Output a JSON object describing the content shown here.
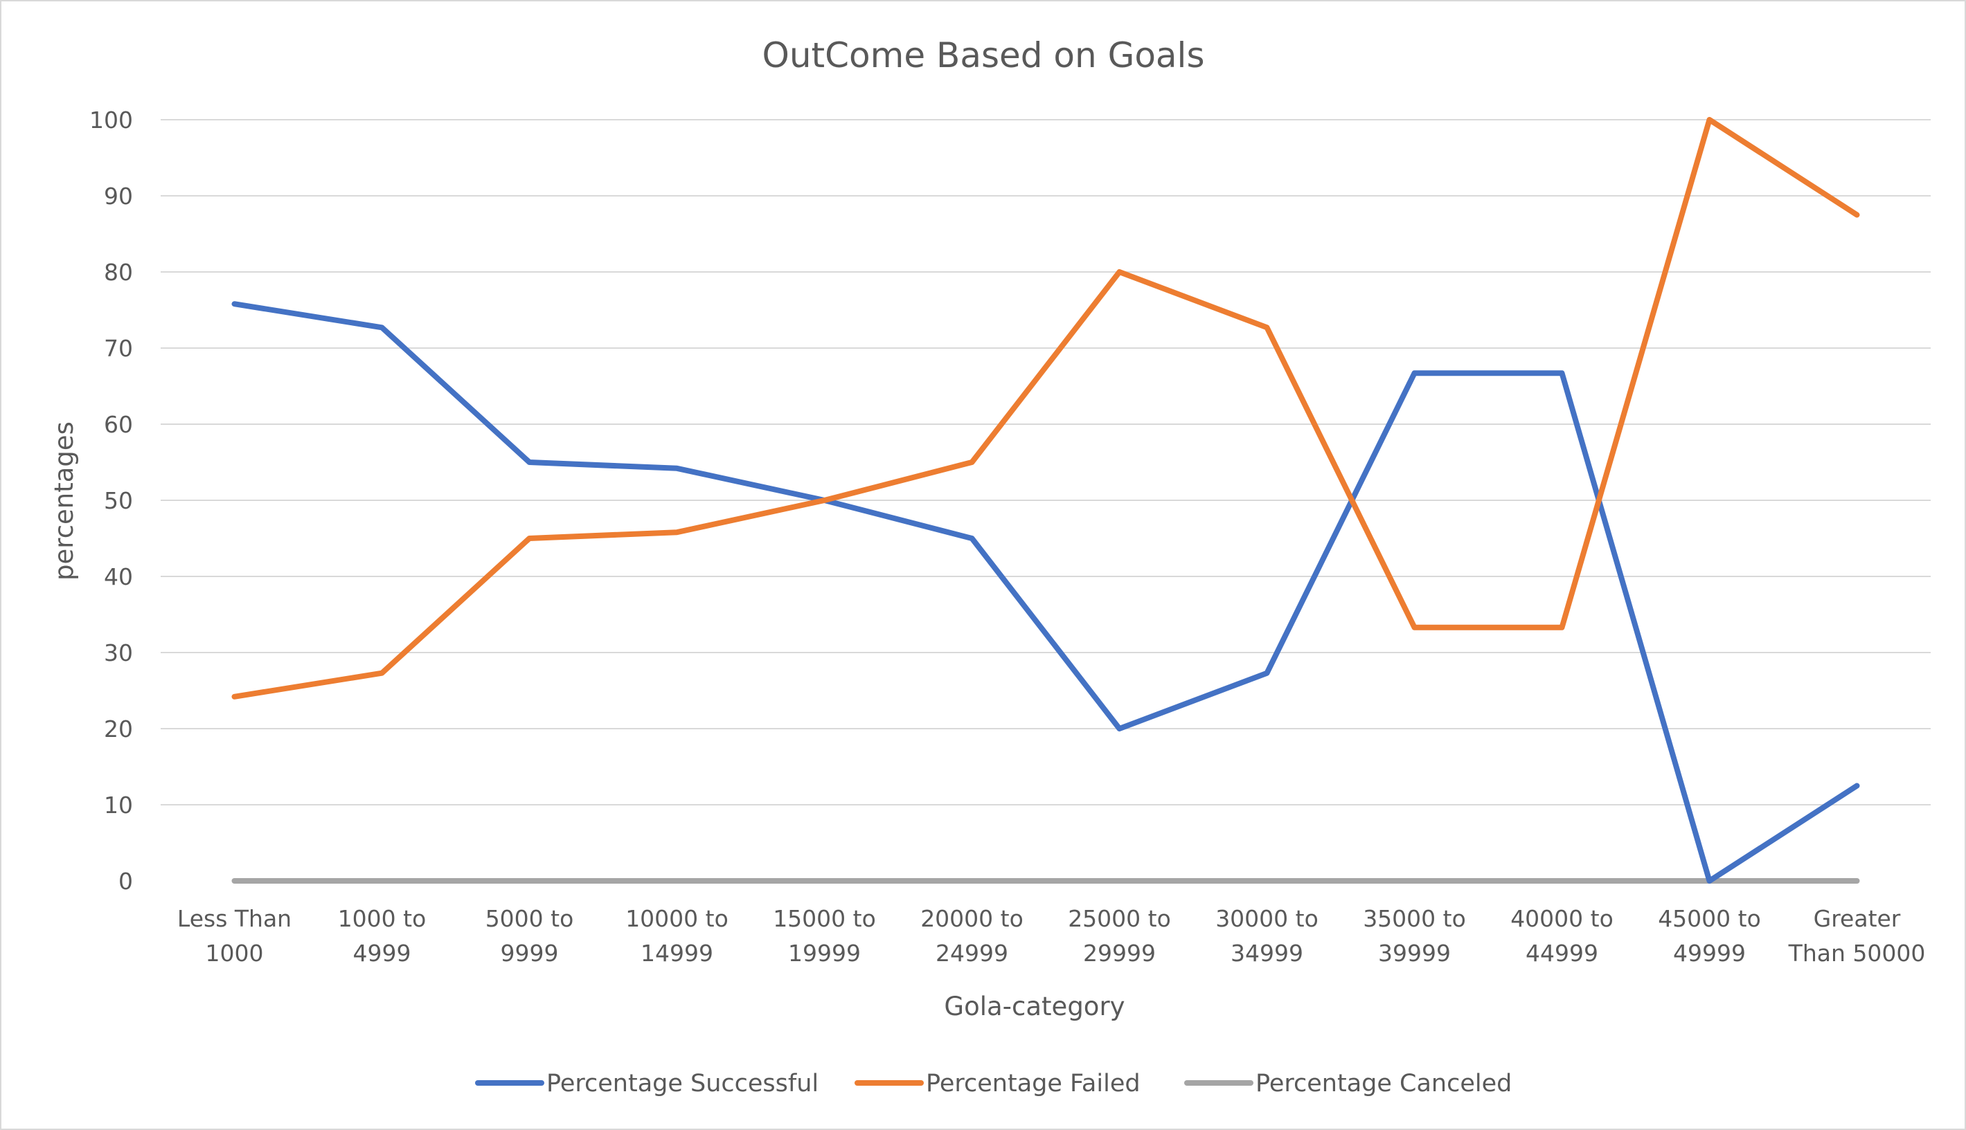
{
  "chart_data": {
    "type": "line",
    "title": "OutCome Based on Goals",
    "xlabel": "Gola-category",
    "ylabel": "percentages",
    "ylim": [
      0,
      100
    ],
    "yticks": [
      0,
      10,
      20,
      30,
      40,
      50,
      60,
      70,
      80,
      90,
      100
    ],
    "grid": true,
    "legend_position": "bottom",
    "categories": [
      [
        "Less Than",
        "1000"
      ],
      [
        "1000 to",
        "4999"
      ],
      [
        "5000 to",
        "9999"
      ],
      [
        "10000 to",
        "14999"
      ],
      [
        "15000 to",
        "19999"
      ],
      [
        "20000 to",
        "24999"
      ],
      [
        "25000 to",
        "29999"
      ],
      [
        "30000 to",
        "34999"
      ],
      [
        "35000 to",
        "39999"
      ],
      [
        "40000 to",
        "44999"
      ],
      [
        "45000 to",
        "49999"
      ],
      [
        "Greater",
        "Than 50000"
      ]
    ],
    "series": [
      {
        "name": "Percentage Successful",
        "color": "#4472c4",
        "values": [
          75.8,
          72.7,
          55.0,
          54.2,
          50.0,
          45.0,
          20.0,
          27.3,
          66.7,
          66.7,
          0,
          12.5
        ]
      },
      {
        "name": "Percentage Failed",
        "color": "#ed7d31",
        "values": [
          24.2,
          27.3,
          45.0,
          45.8,
          50.0,
          55.0,
          80.0,
          72.7,
          33.3,
          33.3,
          100,
          87.5
        ]
      },
      {
        "name": "Percentage Canceled",
        "color": "#a5a5a5",
        "values": [
          0,
          0,
          0,
          0,
          0,
          0,
          0,
          0,
          0,
          0,
          0,
          0
        ]
      }
    ]
  }
}
